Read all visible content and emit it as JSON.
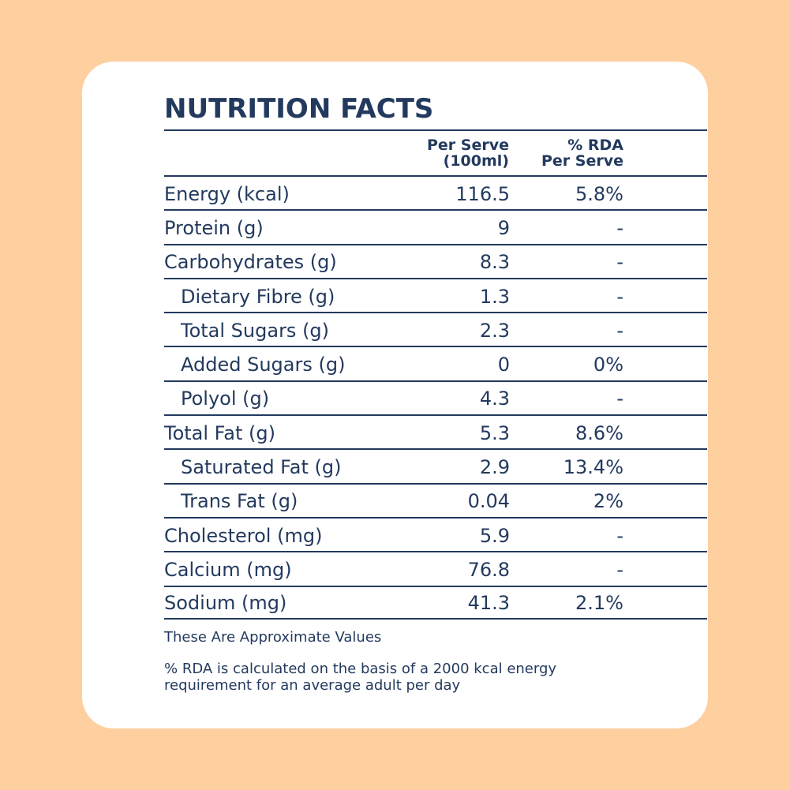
{
  "title": "NUTRITION FACTS",
  "columns": {
    "serve_line1": "Per Serve",
    "serve_line2": "(100ml)",
    "rda_line1": "% RDA",
    "rda_line2": "Per Serve"
  },
  "rows": [
    {
      "name": "Energy (kcal)",
      "serve": "116.5",
      "rda": "5.8%"
    },
    {
      "name": "Protein (g)",
      "serve": "9",
      "rda": "-"
    },
    {
      "name": "Carbohydrates (g)",
      "serve": "8.3",
      "rda": "-"
    },
    {
      "name": "Dietary Fibre (g)",
      "serve": "1.3",
      "rda": "-"
    },
    {
      "name": "Total Sugars (g)",
      "serve": "2.3",
      "rda": "-"
    },
    {
      "name": "Added Sugars (g)",
      "serve": "0",
      "rda": "0%"
    },
    {
      "name": "Polyol (g)",
      "serve": "4.3",
      "rda": "-"
    },
    {
      "name": "Total Fat (g)",
      "serve": "5.3",
      "rda": "8.6%"
    },
    {
      "name": "Saturated Fat (g)",
      "serve": "2.9",
      "rda": "13.4%"
    },
    {
      "name": "Trans Fat (g)",
      "serve": "0.04",
      "rda": "2%"
    },
    {
      "name": "Cholesterol (mg)",
      "serve": "5.9",
      "rda": "-"
    },
    {
      "name": "Calcium (mg)",
      "serve": "76.8",
      "rda": "-"
    },
    {
      "name": "Sodium (mg)",
      "serve": "41.3",
      "rda": "2.1%"
    }
  ],
  "notes": {
    "approx": "These Are Approximate Values",
    "rda_basis": "% RDA is calculated on the basis of a 2000 kcal energy requirement for an average adult per day"
  },
  "colors": {
    "background": "#FECF9F",
    "card": "#FFFFFF",
    "text": "#233A5E"
  }
}
